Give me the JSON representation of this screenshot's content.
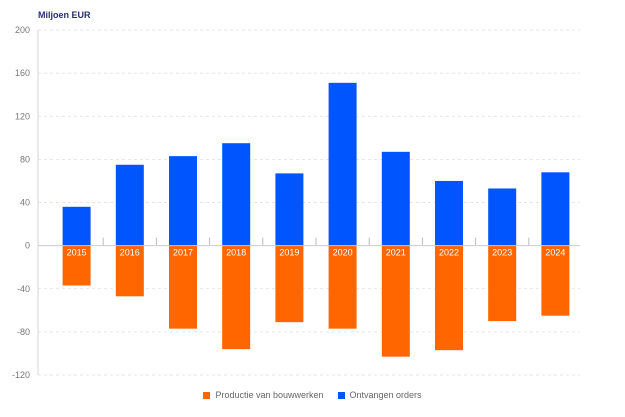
{
  "chart_data": {
    "type": "bar",
    "stacked": "diverging",
    "ylabel": "Miljoen EUR",
    "ylim": [
      -120,
      200
    ],
    "yticks": [
      200,
      160,
      120,
      80,
      40,
      0,
      -40,
      -80,
      -120
    ],
    "grid": true,
    "legend_position": "bottom",
    "categories": [
      "2015",
      "2016",
      "2017",
      "2018",
      "2019",
      "2020",
      "2021",
      "2022",
      "2023",
      "2024"
    ],
    "series": [
      {
        "name": "Productie van bouwwerken",
        "color": "#ff6600",
        "values": [
          -37,
          -47,
          -77,
          -96,
          -71,
          -77,
          -103,
          -97,
          -70,
          -65
        ]
      },
      {
        "name": "Ontvangen orders",
        "color": "#0055ff",
        "values": [
          36,
          75,
          83,
          95,
          67,
          151,
          87,
          60,
          53,
          68
        ]
      }
    ]
  }
}
